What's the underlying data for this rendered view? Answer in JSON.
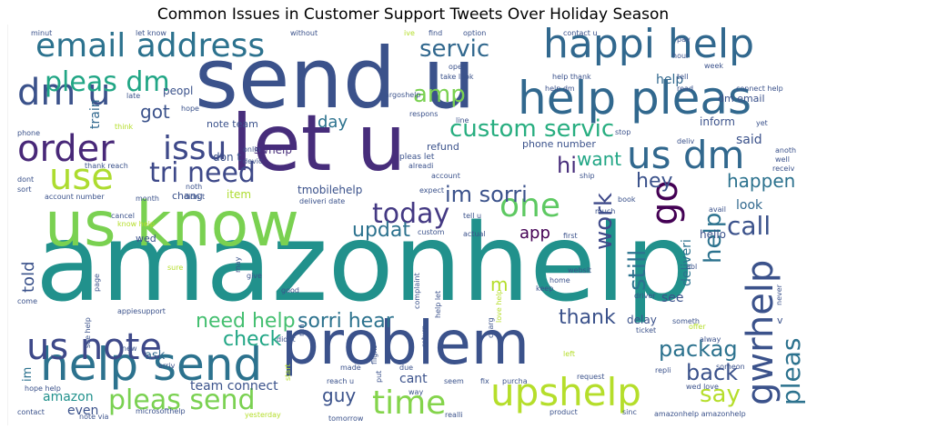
{
  "chart_data": {
    "type": "wordcloud",
    "title": "Common Issues in Customer Support Tweets Over Holiday Season",
    "colors": [
      "#440154",
      "#472d7b",
      "#3b528b",
      "#2c728e",
      "#21918c",
      "#28ae80",
      "#5ec962",
      "#addc30",
      "#fde725"
    ],
    "words": [
      {
        "text": "amazonhelp",
        "weight": 100,
        "color": "#21918c"
      },
      {
        "text": "send u",
        "weight": 88,
        "color": "#3b528b"
      },
      {
        "text": "us know",
        "weight": 72,
        "color": "#7ad151"
      },
      {
        "text": "let u",
        "weight": 70,
        "color": "#472d7b"
      },
      {
        "text": "problem",
        "weight": 68,
        "color": "#3b528b"
      },
      {
        "text": "help pleas",
        "weight": 52,
        "color": "#31688e"
      },
      {
        "text": "help send",
        "weight": 48,
        "color": "#2c728e"
      },
      {
        "text": "happi help",
        "weight": 46,
        "color": "#31688e"
      },
      {
        "text": "email address",
        "weight": 44,
        "color": "#2c728e"
      },
      {
        "text": "upshelp",
        "weight": 44,
        "color": "#b5de2b"
      },
      {
        "text": "us dm",
        "weight": 42,
        "color": "#31688e"
      },
      {
        "text": "order",
        "weight": 40,
        "color": "#482878"
      },
      {
        "text": "us note",
        "weight": 38,
        "color": "#3e4989"
      },
      {
        "text": "use",
        "weight": 38,
        "color": "#addc30"
      },
      {
        "text": "dm u",
        "weight": 38,
        "color": "#3b528b"
      },
      {
        "text": "go",
        "weight": 38,
        "color": "#440154"
      },
      {
        "text": "gwrhelp",
        "weight": 36,
        "color": "#3b528b"
      },
      {
        "text": "one",
        "weight": 36,
        "color": "#5ec962"
      },
      {
        "text": "time",
        "weight": 34,
        "color": "#84d44b"
      },
      {
        "text": "issu",
        "weight": 32,
        "color": "#3e4989"
      },
      {
        "text": "pleas dm",
        "weight": 30,
        "color": "#21a685"
      },
      {
        "text": "pleas send",
        "weight": 30,
        "color": "#7ad151"
      },
      {
        "text": "today",
        "weight": 28,
        "color": "#443983"
      },
      {
        "text": "tri need",
        "weight": 28,
        "color": "#3e4989"
      },
      {
        "text": "pleas",
        "weight": 28,
        "color": "#2c728e"
      },
      {
        "text": "call",
        "weight": 26,
        "color": "#3b528b"
      },
      {
        "text": "custom servic",
        "weight": 24,
        "color": "#28ae80"
      },
      {
        "text": "servic",
        "weight": 24,
        "color": "#31688e"
      },
      {
        "text": "amp",
        "weight": 24,
        "color": "#7ad151"
      },
      {
        "text": "help",
        "weight": 24,
        "color": "#2c728e"
      },
      {
        "text": "work",
        "weight": 24,
        "color": "#3e4989"
      },
      {
        "text": "still",
        "weight": 24,
        "color": "#2c728e"
      },
      {
        "text": "hi",
        "weight": 22,
        "color": "#472d7b"
      },
      {
        "text": "im sorri",
        "weight": 22,
        "color": "#3b528b"
      },
      {
        "text": "sorri hear",
        "weight": 20,
        "color": "#2c728e"
      },
      {
        "text": "check",
        "weight": 20,
        "color": "#21a685"
      },
      {
        "text": "need help",
        "weight": 20,
        "color": "#44bf70"
      },
      {
        "text": "say",
        "weight": 20,
        "color": "#b5de2b"
      },
      {
        "text": "back",
        "weight": 20,
        "color": "#3b528b"
      },
      {
        "text": "packag",
        "weight": 20,
        "color": "#2c728e"
      },
      {
        "text": "thank",
        "weight": 20,
        "color": "#3b528b"
      },
      {
        "text": "updat",
        "weight": 20,
        "color": "#2c728e"
      },
      {
        "text": "hey",
        "weight": 20,
        "color": "#3b528b"
      },
      {
        "text": "happen",
        "weight": 18,
        "color": "#2c728e"
      },
      {
        "text": "guy",
        "weight": 18,
        "color": "#3b528b"
      },
      {
        "text": "got",
        "weight": 18,
        "color": "#3b528b"
      },
      {
        "text": "want",
        "weight": 18,
        "color": "#21a685"
      },
      {
        "text": "app",
        "weight": 18,
        "color": "#440154"
      },
      {
        "text": "day",
        "weight": 18,
        "color": "#2c728e"
      },
      {
        "text": "told",
        "weight": 18,
        "color": "#3b528b"
      },
      {
        "text": "m",
        "weight": 18,
        "color": "#b5de2b"
      },
      {
        "text": "help",
        "weight": 16,
        "color": "#31688e"
      },
      {
        "text": "train",
        "weight": 16,
        "color": "#31688e"
      },
      {
        "text": "look",
        "weight": 14,
        "color": "#31688e"
      },
      {
        "text": "said",
        "weight": 14,
        "color": "#3b528b"
      },
      {
        "text": "deliveri",
        "weight": 14,
        "color": "#2c728e"
      },
      {
        "text": "see",
        "weight": 14,
        "color": "#3b528b"
      },
      {
        "text": "even",
        "weight": 14,
        "color": "#3b528b"
      },
      {
        "text": "amazon",
        "weight": 14,
        "color": "#21918c"
      },
      {
        "text": "cant",
        "weight": 14,
        "color": "#3b528b"
      },
      {
        "text": "team connect",
        "weight": 14,
        "color": "#3b528b"
      },
      {
        "text": "ask",
        "weight": 13,
        "color": "#31688e"
      },
      {
        "text": "im",
        "weight": 13,
        "color": "#2c728e"
      },
      {
        "text": "hello",
        "weight": 12,
        "color": "#3b528b"
      },
      {
        "text": "item",
        "weight": 12,
        "color": "#addc30"
      },
      {
        "text": "inform",
        "weight": 12,
        "color": "#3b528b"
      },
      {
        "text": "delay",
        "weight": 12,
        "color": "#3b528b"
      },
      {
        "text": "tmobilehelp",
        "weight": 12,
        "color": "#3b528b"
      },
      {
        "text": "swhelp",
        "weight": 12,
        "color": "#472d7b"
      },
      {
        "text": "peopl",
        "weight": 12,
        "color": "#3b528b"
      },
      {
        "text": "don t",
        "weight": 12,
        "color": "#3b528b"
      },
      {
        "text": "chang",
        "weight": 11,
        "color": "#3b528b"
      },
      {
        "text": "wed",
        "weight": 11,
        "color": "#3b528b"
      },
      {
        "text": "note team",
        "weight": 11,
        "color": "#3b528b"
      },
      {
        "text": "phone number",
        "weight": 11,
        "color": "#3b528b"
      },
      {
        "text": "refund",
        "weight": 11,
        "color": "#3b528b"
      },
      {
        "text": "dm email",
        "weight": 11,
        "color": "#3b528b"
      },
      {
        "text": "v",
        "weight": 11,
        "color": "#3b528b"
      },
      {
        "text": "pleas let",
        "weight": 9,
        "color": "#3b528b"
      },
      {
        "text": "minut",
        "weight": 8,
        "color": "#3b528b"
      },
      {
        "text": "let know",
        "weight": 8,
        "color": "#3b528b"
      },
      {
        "text": "without",
        "weight": 8,
        "color": "#3b528b"
      },
      {
        "text": "ive",
        "weight": 8,
        "color": "#b5de2b"
      },
      {
        "text": "find",
        "weight": 8,
        "color": "#3b528b"
      },
      {
        "text": "option",
        "weight": 8,
        "color": "#3b528b"
      },
      {
        "text": "contact u",
        "weight": 8,
        "color": "#3b528b"
      },
      {
        "text": "pay",
        "weight": 8,
        "color": "#3b528b"
      },
      {
        "text": "week",
        "weight": 8,
        "color": "#3b528b"
      },
      {
        "text": "open",
        "weight": 8,
        "color": "#3b528b"
      },
      {
        "text": "take look",
        "weight": 8,
        "color": "#3b528b"
      },
      {
        "text": "help thank",
        "weight": 8,
        "color": "#3b528b"
      },
      {
        "text": "tell",
        "weight": 8,
        "color": "#3b528b"
      },
      {
        "text": "hour",
        "weight": 8,
        "color": "#3b528b"
      },
      {
        "text": "connect help",
        "weight": 8,
        "color": "#3b528b"
      },
      {
        "text": "read",
        "weight": 8,
        "color": "#3b528b"
      },
      {
        "text": "help dm",
        "weight": 8,
        "color": "#3b528b"
      },
      {
        "text": "late",
        "weight": 8,
        "color": "#3b528b"
      },
      {
        "text": "hope",
        "weight": 8,
        "color": "#3b528b"
      },
      {
        "text": "think",
        "weight": 8,
        "color": "#b5de2b"
      },
      {
        "text": "respons",
        "weight": 8,
        "color": "#3b528b"
      },
      {
        "text": "argoshelp",
        "weight": 8,
        "color": "#3b528b"
      },
      {
        "text": "line",
        "weight": 8,
        "color": "#3b528b"
      },
      {
        "text": "stop",
        "weight": 8,
        "color": "#3b528b"
      },
      {
        "text": "yet",
        "weight": 8,
        "color": "#3b528b"
      },
      {
        "text": "phone",
        "weight": 8,
        "color": "#3b528b"
      },
      {
        "text": "deliv",
        "weight": 8,
        "color": "#3b528b"
      },
      {
        "text": "anoth",
        "weight": 8,
        "color": "#3b528b"
      },
      {
        "text": "well",
        "weight": 8,
        "color": "#3b528b"
      },
      {
        "text": "receiv",
        "weight": 8,
        "color": "#3b528b"
      },
      {
        "text": "alreadi",
        "weight": 8,
        "color": "#3b528b"
      },
      {
        "text": "account",
        "weight": 8,
        "color": "#3b528b"
      },
      {
        "text": "ship",
        "weight": 8,
        "color": "#3b528b"
      },
      {
        "text": "thank reach",
        "weight": 8,
        "color": "#3b528b"
      },
      {
        "text": "onlin",
        "weight": 8,
        "color": "#3b528b"
      },
      {
        "text": "devic",
        "weight": 8,
        "color": "#3b528b"
      },
      {
        "text": "dont",
        "weight": 8,
        "color": "#3b528b"
      },
      {
        "text": "sort",
        "weight": 8,
        "color": "#3b528b"
      },
      {
        "text": "account number",
        "weight": 8,
        "color": "#3b528b"
      },
      {
        "text": "noth",
        "weight": 8,
        "color": "#3b528b"
      },
      {
        "text": "didn t",
        "weight": 8,
        "color": "#3b528b"
      },
      {
        "text": "month",
        "weight": 8,
        "color": "#3b528b"
      },
      {
        "text": "deliveri date",
        "weight": 8,
        "color": "#3b528b"
      },
      {
        "text": "expect",
        "weight": 8,
        "color": "#3b528b"
      },
      {
        "text": "book",
        "weight": 8,
        "color": "#3b528b"
      },
      {
        "text": "avail",
        "weight": 8,
        "color": "#3b528b"
      },
      {
        "text": "cancel",
        "weight": 8,
        "color": "#3b528b"
      },
      {
        "text": "know help",
        "weight": 8,
        "color": "#b5de2b"
      },
      {
        "text": "tell u",
        "weight": 8,
        "color": "#3b528b"
      },
      {
        "text": "much",
        "weight": 8,
        "color": "#3b528b"
      },
      {
        "text": "custom",
        "weight": 8,
        "color": "#3b528b"
      },
      {
        "text": "actual",
        "weight": 8,
        "color": "#3b528b"
      },
      {
        "text": "first",
        "weight": 8,
        "color": "#3b528b"
      },
      {
        "text": "sure",
        "weight": 8,
        "color": "#b5de2b"
      },
      {
        "text": "may",
        "weight": 8,
        "color": "#3b528b"
      },
      {
        "text": "home",
        "weight": 8,
        "color": "#3b528b"
      },
      {
        "text": "websit",
        "weight": 8,
        "color": "#3b528b"
      },
      {
        "text": "abl",
        "weight": 8,
        "color": "#3b528b"
      },
      {
        "text": "page",
        "weight": 8,
        "color": "#3b528b"
      },
      {
        "text": "give",
        "weight": 8,
        "color": "#3b528b"
      },
      {
        "text": "good",
        "weight": 8,
        "color": "#3b528b"
      },
      {
        "text": "keep",
        "weight": 8,
        "color": "#3b528b"
      },
      {
        "text": "driver",
        "weight": 8,
        "color": "#3b528b"
      },
      {
        "text": "never",
        "weight": 8,
        "color": "#3b528b"
      },
      {
        "text": "come",
        "weight": 8,
        "color": "#3b528b"
      },
      {
        "text": "run",
        "weight": 8,
        "color": "#3b528b"
      },
      {
        "text": "complaint",
        "weight": 8,
        "color": "#3b528b"
      },
      {
        "text": "help let",
        "weight": 8,
        "color": "#3b528b"
      },
      {
        "text": "love help",
        "weight": 8,
        "color": "#b5de2b"
      },
      {
        "text": "appiesupport",
        "weight": 8,
        "color": "#3b528b"
      },
      {
        "text": "someth",
        "weight": 8,
        "color": "#3b528b"
      },
      {
        "text": "offer",
        "weight": 8,
        "color": "#b5de2b"
      },
      {
        "text": "see help",
        "weight": 8,
        "color": "#3b528b"
      },
      {
        "text": "charg",
        "weight": 8,
        "color": "#3b528b"
      },
      {
        "text": "new",
        "weight": 8,
        "color": "#3b528b"
      },
      {
        "text": "didnt",
        "weight": 8,
        "color": "#3b528b"
      },
      {
        "text": "ticket",
        "weight": 8,
        "color": "#3b528b"
      },
      {
        "text": "alway",
        "weight": 8,
        "color": "#3b528b"
      },
      {
        "text": "arriv",
        "weight": 8,
        "color": "#3b528b"
      },
      {
        "text": "made",
        "weight": 8,
        "color": "#3b528b"
      },
      {
        "text": "flight",
        "weight": 8,
        "color": "#3b528b"
      },
      {
        "text": "return",
        "weight": 8,
        "color": "#3b528b"
      },
      {
        "text": "left",
        "weight": 8,
        "color": "#b5de2b"
      },
      {
        "text": "someon",
        "weight": 8,
        "color": "#3b528b"
      },
      {
        "text": "start",
        "weight": 8,
        "color": "#b5de2b"
      },
      {
        "text": "put",
        "weight": 8,
        "color": "#3b528b"
      },
      {
        "text": "due",
        "weight": 8,
        "color": "#3b528b"
      },
      {
        "text": "reach u",
        "weight": 8,
        "color": "#3b528b"
      },
      {
        "text": "request",
        "weight": 8,
        "color": "#3b528b"
      },
      {
        "text": "hope help",
        "weight": 8,
        "color": "#3b528b"
      },
      {
        "text": "way",
        "weight": 8,
        "color": "#3b528b"
      },
      {
        "text": "seem",
        "weight": 8,
        "color": "#3b528b"
      },
      {
        "text": "fix",
        "weight": 8,
        "color": "#3b528b"
      },
      {
        "text": "purcha",
        "weight": 8,
        "color": "#3b528b"
      },
      {
        "text": "repli",
        "weight": 8,
        "color": "#3b528b"
      },
      {
        "text": "wed love",
        "weight": 8,
        "color": "#3b528b"
      },
      {
        "text": "contact",
        "weight": 8,
        "color": "#3b528b"
      },
      {
        "text": "note via",
        "weight": 8,
        "color": "#3b528b"
      },
      {
        "text": "microsofthelp",
        "weight": 8,
        "color": "#3b528b"
      },
      {
        "text": "yesterday",
        "weight": 8,
        "color": "#b5de2b"
      },
      {
        "text": "tomorrow",
        "weight": 8,
        "color": "#3b528b"
      },
      {
        "text": "realli",
        "weight": 8,
        "color": "#3b528b"
      },
      {
        "text": "product",
        "weight": 8,
        "color": "#3b528b"
      },
      {
        "text": "sinc",
        "weight": 8,
        "color": "#3b528b"
      },
      {
        "text": "amazonhelp amazonhelp",
        "weight": 8,
        "color": "#3b528b"
      }
    ]
  }
}
